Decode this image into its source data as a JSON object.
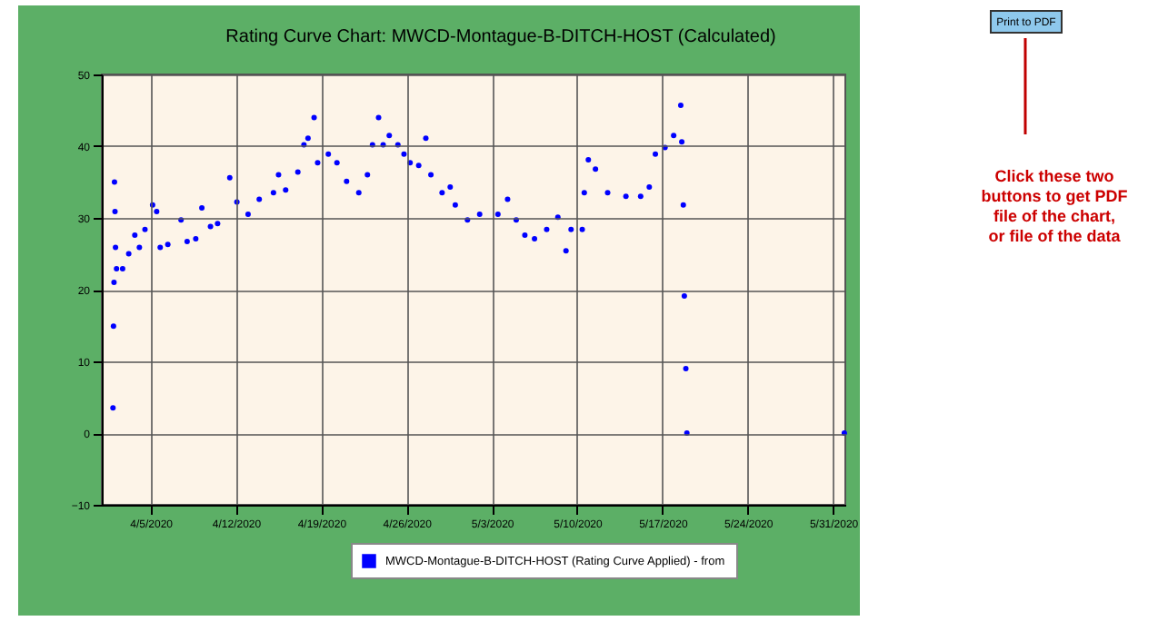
{
  "chart_data": {
    "type": "scatter",
    "title": "Rating Curve Chart: MWCD-Montague-B-DITCH-HOST (Calculated)",
    "x": [
      "2020-04-01T22:00",
      "2020-04-01T23:00",
      "2020-04-02T00:00",
      "2020-04-02T01:00",
      "2020-04-02T02:00",
      "2020-04-02T03:00",
      "2020-04-02T05:00",
      "2020-04-02T17:00",
      "2020-04-03T05:00",
      "2020-04-03T17:00",
      "2020-04-04T02:00",
      "2020-04-04T13:00",
      "2020-04-05T04:00",
      "2020-04-05T12:00",
      "2020-04-05T19:00",
      "2020-04-06T10:00",
      "2020-04-07T12:00",
      "2020-04-08T00:00",
      "2020-04-08T17:00",
      "2020-04-09T05:00",
      "2020-04-09T22:00",
      "2020-04-10T12:00",
      "2020-04-11T12:00",
      "2020-04-12T02:00",
      "2020-04-13T00:00",
      "2020-04-13T22:00",
      "2020-04-15T02:00",
      "2020-04-15T12:00",
      "2020-04-16T02:00",
      "2020-04-17T02:00",
      "2020-04-17T14:00",
      "2020-04-17T22:00",
      "2020-04-18T10:00",
      "2020-04-18T17:00",
      "2020-04-19T14:00",
      "2020-04-20T07:00",
      "2020-04-21T02:00",
      "2020-04-22T02:00",
      "2020-04-22T19:00",
      "2020-04-23T05:00",
      "2020-04-23T17:00",
      "2020-04-24T02:00",
      "2020-04-24T14:00",
      "2020-04-25T07:00",
      "2020-04-25T19:00",
      "2020-04-26T07:00",
      "2020-04-27T00:00",
      "2020-04-27T14:00",
      "2020-04-28T00:00",
      "2020-04-28T22:00",
      "2020-04-29T14:00",
      "2020-04-30T00:00",
      "2020-05-01T00:00",
      "2020-05-02T00:00",
      "2020-05-03T12:00",
      "2020-05-04T07:00",
      "2020-05-05T00:00",
      "2020-05-05T17:00",
      "2020-05-06T12:00",
      "2020-05-07T12:00",
      "2020-05-08T10:00",
      "2020-05-09T02:00",
      "2020-05-09T12:00",
      "2020-05-10T10:00",
      "2020-05-10T14:00",
      "2020-05-10T22:00",
      "2020-05-11T12:00",
      "2020-05-12T12:00",
      "2020-05-14T00:00",
      "2020-05-15T05:00",
      "2020-05-15T22:00",
      "2020-05-16T10:00",
      "2020-05-17T05:00",
      "2020-05-17T22:00",
      "2020-05-18T12:00",
      "2020-05-18T14:00",
      "2020-05-18T17:00",
      "2020-05-18T19:00",
      "2020-05-18T22:00",
      "2020-05-19T00:00",
      "2020-05-31T22:00"
    ],
    "series": [
      {
        "name": "MWCD-Montague-B-DITCH-HOST (Rating Curve Applied) - from",
        "color": "#0000ff",
        "values": [
          3.5,
          14.9,
          21.0,
          35.0,
          30.9,
          25.9,
          22.9,
          22.9,
          25.0,
          27.6,
          25.9,
          28.4,
          31.8,
          30.9,
          25.9,
          26.3,
          29.7,
          26.7,
          27.1,
          31.4,
          28.8,
          29.2,
          35.6,
          32.2,
          30.5,
          32.6,
          33.5,
          36.0,
          33.9,
          36.4,
          40.2,
          41.1,
          44.0,
          37.7,
          38.9,
          37.7,
          35.1,
          33.5,
          36.0,
          40.2,
          44.0,
          40.2,
          41.5,
          40.2,
          38.9,
          37.7,
          37.3,
          41.1,
          36.0,
          33.5,
          34.3,
          31.8,
          29.7,
          30.5,
          30.5,
          32.6,
          29.7,
          27.6,
          27.1,
          28.4,
          30.1,
          25.4,
          28.4,
          28.4,
          33.5,
          38.1,
          36.8,
          33.5,
          33.0,
          33.0,
          34.3,
          38.9,
          39.8,
          41.5,
          45.7,
          40.6,
          31.8,
          19.1,
          9.0,
          0,
          0
        ]
      }
    ],
    "xlim": [
      "2020-04-01",
      "2020-06-01"
    ],
    "xticks": [
      {
        "value": "2020-04-05",
        "label": "4/5/2020"
      },
      {
        "value": "2020-04-12",
        "label": "4/12/2020"
      },
      {
        "value": "2020-04-19",
        "label": "4/19/2020"
      },
      {
        "value": "2020-04-26",
        "label": "4/26/2020"
      },
      {
        "value": "2020-05-03",
        "label": "5/3/2020"
      },
      {
        "value": "2020-05-10",
        "label": "5/10/2020"
      },
      {
        "value": "2020-05-17",
        "label": "5/17/2020"
      },
      {
        "value": "2020-05-24",
        "label": "5/24/2020"
      },
      {
        "value": "2020-05-31",
        "label": "5/31/2020"
      }
    ],
    "ylim": [
      -10,
      50
    ],
    "yticks": [
      -10,
      0,
      10,
      20,
      30,
      40,
      50
    ],
    "grid": true,
    "legend": "bottom",
    "marker": "circle",
    "annotations": [
      "Print to PDF",
      "Click these two buttons to get PDF file of the chart, or file of the data"
    ]
  }
}
